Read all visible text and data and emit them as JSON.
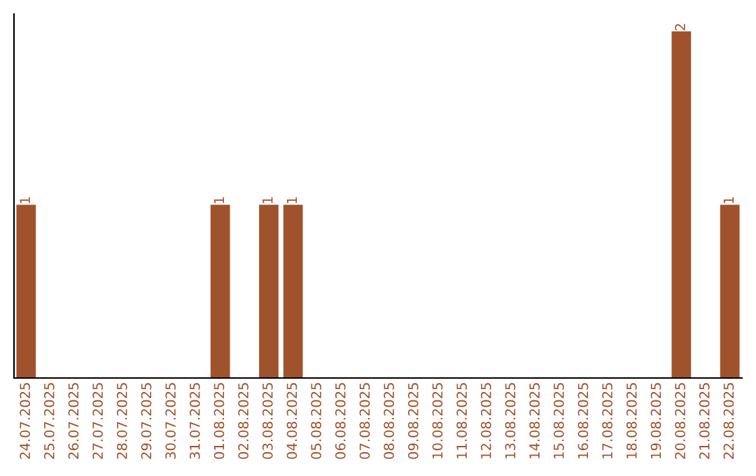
{
  "chart_data": {
    "type": "bar",
    "categories": [
      "24.07.2025",
      "25.07.2025",
      "26.07.2025",
      "27.07.2025",
      "28.07.2025",
      "29.07.2025",
      "30.07.2025",
      "31.07.2025",
      "01.08.2025",
      "02.08.2025",
      "03.08.2025",
      "04.08.2025",
      "05.08.2025",
      "06.08.2025",
      "07.08.2025",
      "08.08.2025",
      "09.08.2025",
      "10.08.2025",
      "11.08.2025",
      "12.08.2025",
      "13.08.2025",
      "14.08.2025",
      "15.08.2025",
      "16.08.2025",
      "17.08.2025",
      "18.08.2025",
      "19.08.2025",
      "20.08.2025",
      "21.08.2025",
      "22.08.2025"
    ],
    "values": [
      1,
      0,
      0,
      0,
      0,
      0,
      0,
      0,
      1,
      0,
      1,
      1,
      0,
      0,
      0,
      0,
      0,
      0,
      0,
      0,
      0,
      0,
      0,
      0,
      0,
      0,
      0,
      2,
      0,
      1
    ],
    "value_labels": [
      "1",
      null,
      null,
      null,
      null,
      null,
      null,
      null,
      "1",
      null,
      "1",
      "1",
      null,
      null,
      null,
      null,
      null,
      null,
      null,
      null,
      null,
      null,
      null,
      null,
      null,
      null,
      null,
      "2",
      null,
      "1"
    ],
    "color": "#a0522d",
    "grid": false,
    "legend": false
  }
}
